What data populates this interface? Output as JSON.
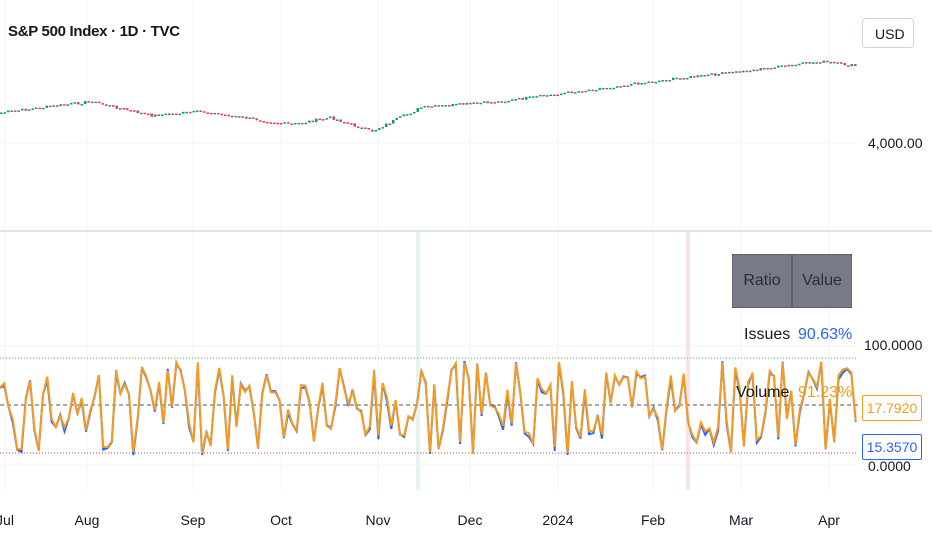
{
  "header": {
    "title": "S&P 500 Index · 1D · TVC",
    "currency": "USD"
  },
  "price_axis": {
    "label": "4,000.00"
  },
  "indicator_axis": {
    "top": "100.0000",
    "bottom": "0.0000"
  },
  "badges": {
    "orange": "17.7920",
    "blue": "15.3570"
  },
  "table": {
    "headers": [
      "Ratio",
      "Value"
    ],
    "rows": [
      {
        "label": "Issues",
        "value": "90.63%"
      },
      {
        "label": "Volume",
        "value": "91.23%"
      }
    ]
  },
  "x_axis": [
    "Jul",
    "Aug",
    "Sep",
    "Oct",
    "Nov",
    "Dec",
    "2024",
    "Feb",
    "Mar",
    "Apr"
  ],
  "colors": {
    "up": "#089981",
    "down": "#f23645",
    "issues": "#2962ff",
    "volume": "#f59b1f"
  }
}
